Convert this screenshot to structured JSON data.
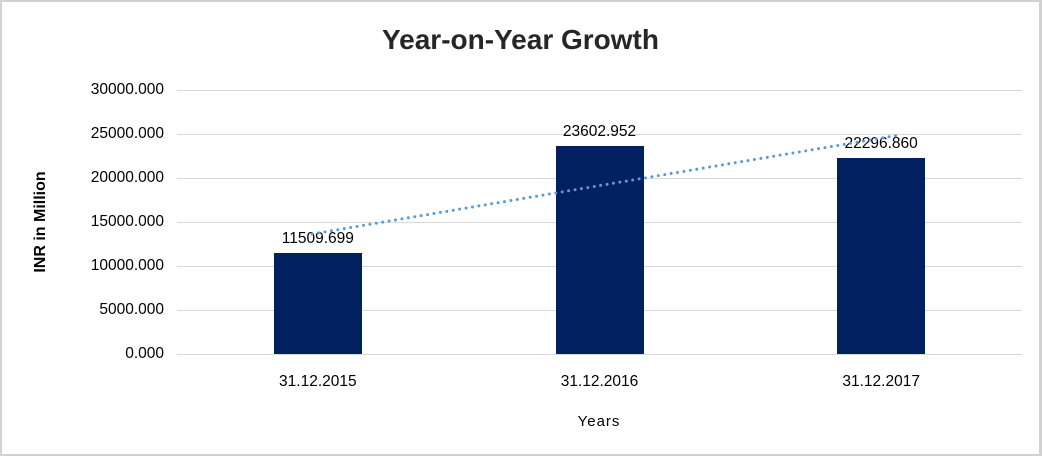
{
  "chart_data": {
    "type": "bar",
    "title": "Year-on-Year Growth",
    "xlabel": "Years",
    "ylabel": "INR in Million",
    "categories": [
      "31.12.2015",
      "31.12.2016",
      "31.12.2017"
    ],
    "values": [
      11509.699,
      23602.952,
      22296.86
    ],
    "data_labels": [
      "11509.699",
      "23602.952",
      "22296.860"
    ],
    "ylim": [
      0,
      30000
    ],
    "ytick_step": 5000,
    "yticks": [
      "30000.000",
      "25000.000",
      "20000.000",
      "15000.000",
      "10000.000",
      "5000.000",
      "0.000"
    ],
    "grid": true,
    "legend": "none",
    "trendline": {
      "type": "linear",
      "style": "dotted"
    },
    "colors": {
      "bar": "#002060",
      "trendline": "#5b9bd5",
      "gridline": "#d9d9d9",
      "title_text": "#262626",
      "tick_text": "#000000",
      "background": "#ffffff",
      "frame_border": "#d2d2d2"
    }
  }
}
